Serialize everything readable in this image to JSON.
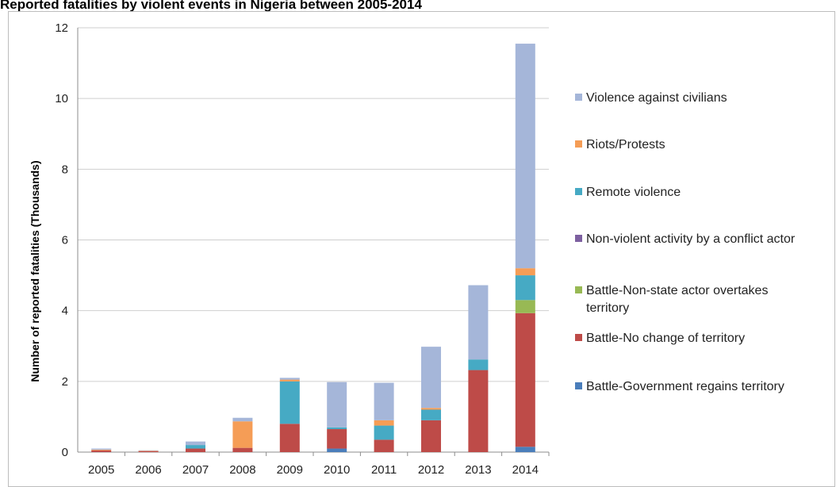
{
  "chart_data": {
    "type": "bar",
    "stacked": true,
    "title": "Reported fatalities by violent events in Nigeria between 2005-2014",
    "xlabel": "",
    "ylabel": "Number of reported fatalities (Thousands)",
    "ylim": [
      0,
      12
    ],
    "yticks": [
      0,
      2,
      4,
      6,
      8,
      10,
      12
    ],
    "grid": true,
    "legend_position": "right",
    "categories": [
      "2005",
      "2006",
      "2007",
      "2008",
      "2009",
      "2010",
      "2011",
      "2012",
      "2013",
      "2014"
    ],
    "series": [
      {
        "name": "Battle-Government regains territory",
        "color": "#4a7ebb",
        "values": [
          0,
          0,
          0,
          0,
          0,
          0.1,
          0,
          0,
          0,
          0.15
        ]
      },
      {
        "name": "Battle-No change of territory",
        "color": "#be4b48",
        "values": [
          0.05,
          0.03,
          0.1,
          0.12,
          0.8,
          0.55,
          0.35,
          0.9,
          2.32,
          3.78
        ]
      },
      {
        "name": "Battle-Non-state actor overtakes territory",
        "color": "#98b954",
        "values": [
          0,
          0,
          0,
          0,
          0,
          0,
          0,
          0,
          0,
          0.37
        ]
      },
      {
        "name": "Non-violent activity by a conflict actor",
        "color": "#7d60a0",
        "values": [
          0,
          0,
          0,
          0,
          0,
          0,
          0,
          0,
          0,
          0
        ]
      },
      {
        "name": "Remote violence",
        "color": "#46aac4",
        "values": [
          0,
          0,
          0.1,
          0,
          1.2,
          0.05,
          0.4,
          0.3,
          0.3,
          0.7
        ]
      },
      {
        "name": "Riots/Protests",
        "color": "#f59d56",
        "values": [
          0.02,
          0.01,
          0,
          0.75,
          0.05,
          0,
          0.15,
          0.05,
          0,
          0.2
        ]
      },
      {
        "name": "Violence against civilians",
        "color": "#a5b6d9",
        "values": [
          0.03,
          0.01,
          0.1,
          0.1,
          0.05,
          1.28,
          1.06,
          1.73,
          2.1,
          6.35
        ]
      }
    ]
  }
}
